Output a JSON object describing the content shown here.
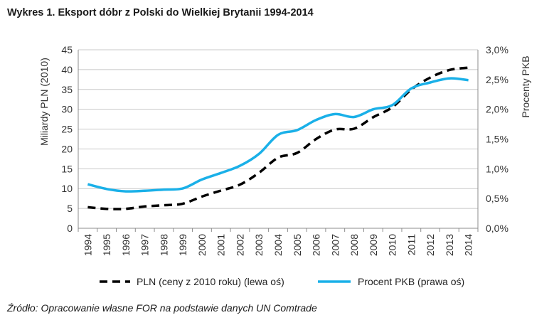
{
  "title": "Wykres 1. Eksport dóbr z Polski do Wielkiej Brytanii 1994-2014",
  "source": "Źródło: Opracowanie własne FOR na podstawie danych UN Comtrade",
  "chart_data": {
    "type": "line",
    "x": [
      1994,
      1995,
      1996,
      1997,
      1998,
      1999,
      2000,
      2001,
      2002,
      2003,
      2004,
      2005,
      2006,
      2007,
      2008,
      2009,
      2010,
      2011,
      2012,
      2013,
      2014
    ],
    "x_tick_labels": [
      "1994",
      "1995",
      "1996",
      "1997",
      "1998",
      "1999",
      "2000",
      "2001",
      "2002",
      "2003",
      "2004",
      "2005",
      "2006",
      "2007",
      "2008",
      "2009",
      "2010",
      "2011",
      "2012",
      "2013",
      "2014"
    ],
    "ylabel_left": "Miliardy PLN (2010)",
    "ylabel_right": "Procenty PKB",
    "ylim_left": [
      0,
      45
    ],
    "ylim_right": [
      0,
      3.0
    ],
    "y_tick_labels_left": [
      "0",
      "5",
      "10",
      "15",
      "20",
      "25",
      "30",
      "35",
      "40",
      "45"
    ],
    "y_tick_labels_right": [
      "0,0%",
      "0,5%",
      "1,0%",
      "1,5%",
      "2,0%",
      "2,5%",
      "3,0%"
    ],
    "grid": "horizontal",
    "legend_position": "bottom",
    "series": [
      {
        "name": "PLN (ceny z 2010 roku) (lewa oś)",
        "axis": "left",
        "color": "#000000",
        "style": "dashed",
        "values": [
          5.3,
          4.9,
          4.9,
          5.5,
          5.8,
          6.2,
          8.0,
          9.5,
          11.0,
          14.0,
          17.8,
          19.0,
          22.5,
          24.9,
          25.1,
          28.0,
          30.5,
          35.0,
          38.0,
          39.9,
          40.5
        ]
      },
      {
        "name": "Procent PKB (prawa oś)",
        "axis": "right",
        "color": "#1ab0e8",
        "style": "solid",
        "values": [
          0.74,
          0.66,
          0.62,
          0.63,
          0.65,
          0.67,
          0.82,
          0.93,
          1.05,
          1.25,
          1.57,
          1.65,
          1.82,
          1.92,
          1.87,
          2.0,
          2.07,
          2.35,
          2.45,
          2.52,
          2.49
        ]
      }
    ]
  }
}
